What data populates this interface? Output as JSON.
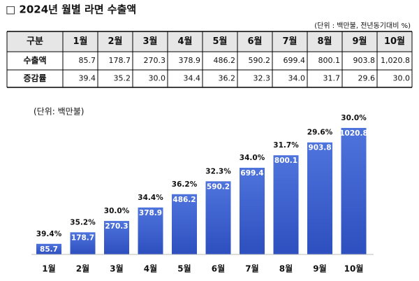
{
  "title": "□ 2024년 월별 라면 수출액",
  "unit_note": "(단위 : 백만불, 전년동기대비 %)",
  "table": {
    "header": [
      "구분",
      "1월",
      "2월",
      "3월",
      "4월",
      "5월",
      "6월",
      "7월",
      "8월",
      "9월",
      "10월"
    ],
    "rows": [
      [
        "수출액",
        "85.7",
        "178.7",
        "270.3",
        "378.9",
        "486.2",
        "590.2",
        "699.4",
        "800.1",
        "903.8",
        "1,020.8"
      ],
      [
        "증감률",
        "39.4",
        "35.2",
        "30.0",
        "34.4",
        "36.2",
        "32.3",
        "34.0",
        "31.7",
        "29.6",
        "30.0"
      ]
    ]
  },
  "chart_data": {
    "type": "bar",
    "subtitle": "(단위: 백만불)",
    "categories": [
      "1월",
      "2월",
      "3월",
      "4월",
      "5월",
      "6월",
      "7월",
      "8월",
      "9월",
      "10월"
    ],
    "values": [
      85.7,
      178.7,
      270.3,
      378.9,
      486.2,
      590.2,
      699.4,
      800.1,
      903.8,
      1020.8
    ],
    "annotations": [
      "39.4%",
      "35.2%",
      "30.0%",
      "34.4%",
      "36.2%",
      "32.3%",
      "34.0%",
      "31.7%",
      "29.6%",
      "30.0%"
    ],
    "color": "#3a5dcc"
  }
}
